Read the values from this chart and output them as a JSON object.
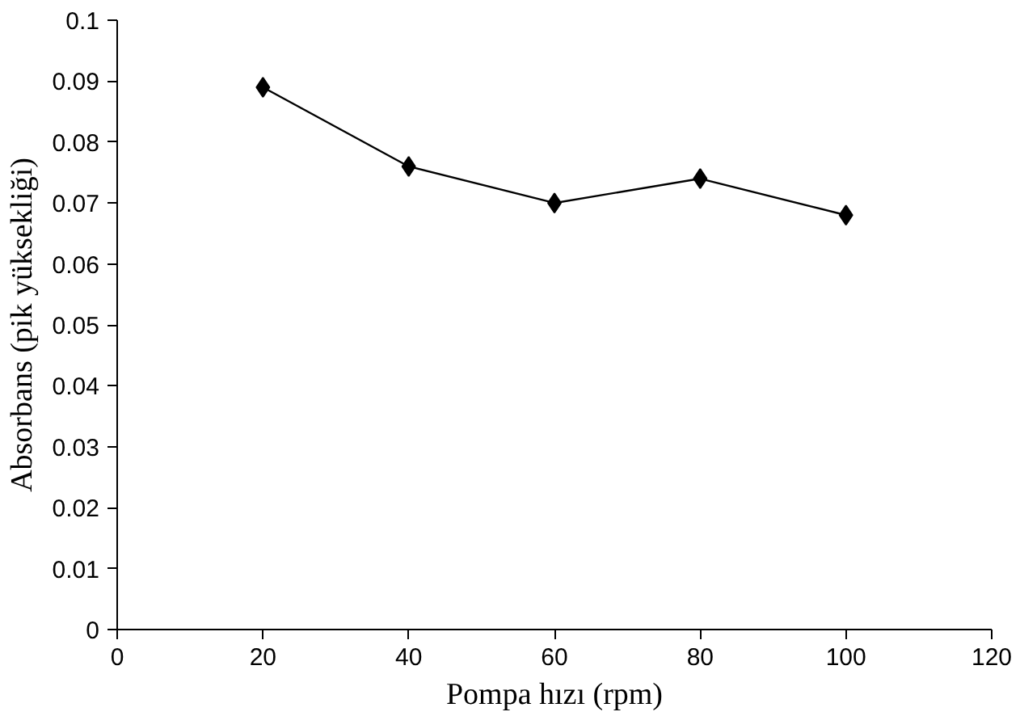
{
  "chart_data": {
    "type": "line",
    "xlabel": "Pompa hızı (rpm)",
    "ylabel": "Absorbans (pik yüksekliği)",
    "x": [
      20,
      40,
      60,
      80,
      100
    ],
    "series": [
      {
        "color": "#000000",
        "values": [
          0.089,
          0.076,
          0.07,
          0.074,
          0.068
        ]
      }
    ],
    "xlim": [
      0,
      120
    ],
    "xticks": [
      0,
      20,
      40,
      60,
      80,
      100,
      120
    ],
    "ylim": [
      0,
      0.1
    ],
    "yticks": [
      0,
      0.01,
      0.02,
      0.03,
      0.04,
      0.05,
      0.06,
      0.07,
      0.08,
      0.09,
      0.1
    ],
    "grid": false,
    "marker": "diamond",
    "line_style": "solid"
  }
}
